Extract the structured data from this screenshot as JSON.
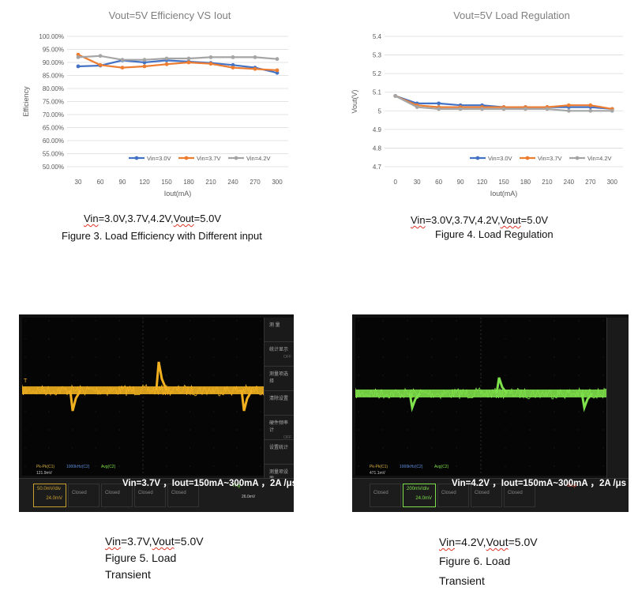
{
  "chart_data": [
    {
      "type": "line",
      "title": "Vout=5V  Efficiency VS Iout",
      "xlabel": "Iout(mA)",
      "ylabel": "Efficiency",
      "categories": [
        "30",
        "60",
        "90",
        "120",
        "150",
        "180",
        "210",
        "240",
        "270",
        "300"
      ],
      "y_ticks": [
        "100.00%",
        "95.00%",
        "90.00%",
        "85.00%",
        "80.00%",
        "75.00%",
        "70.00%",
        "65.00%",
        "60.00%",
        "55.00%",
        "50.00%"
      ],
      "ylim": [
        50,
        100
      ],
      "grid": true,
      "legend": "bottom-right",
      "series": [
        {
          "name": "Vin=3.0V",
          "color": "#4472c4",
          "values": [
            88.5,
            88.8,
            90.8,
            90.0,
            90.8,
            90.3,
            89.8,
            89.0,
            88.0,
            86.0
          ]
        },
        {
          "name": "Vin=3.7V",
          "color": "#ed7d31",
          "values": [
            93.0,
            89.0,
            88.0,
            88.5,
            89.3,
            90.0,
            89.5,
            88.0,
            87.5,
            87.0
          ]
        },
        {
          "name": "Vin=4.2V",
          "color": "#a5a5a5",
          "values": [
            92.0,
            92.5,
            91.0,
            91.0,
            91.5,
            91.5,
            92.0,
            92.0,
            92.0,
            91.3
          ]
        }
      ]
    },
    {
      "type": "line",
      "title": "Vout=5V  Load Regulation",
      "xlabel": "Iout(mA)",
      "ylabel": "Vout(V)",
      "categories": [
        "0",
        "30",
        "60",
        "90",
        "120",
        "150",
        "180",
        "210",
        "240",
        "270",
        "300"
      ],
      "y_ticks": [
        "5.4",
        "5.3",
        "5.2",
        "5.1",
        "5",
        "4.9",
        "4.8",
        "4.7"
      ],
      "ylim": [
        4.7,
        5.4
      ],
      "grid": true,
      "legend": "bottom-right",
      "series": [
        {
          "name": "Vin=3.0V",
          "color": "#4472c4",
          "values": [
            5.08,
            5.04,
            5.04,
            5.03,
            5.03,
            5.02,
            5.02,
            5.02,
            5.02,
            5.02,
            5.01
          ]
        },
        {
          "name": "Vin=3.7V",
          "color": "#ed7d31",
          "values": [
            5.08,
            5.03,
            5.02,
            5.02,
            5.02,
            5.02,
            5.02,
            5.02,
            5.03,
            5.03,
            5.01
          ]
        },
        {
          "name": "Vin=4.2V",
          "color": "#a5a5a5",
          "values": [
            5.08,
            5.02,
            5.01,
            5.01,
            5.01,
            5.01,
            5.01,
            5.01,
            5.0,
            5.0,
            5.0
          ]
        }
      ]
    }
  ],
  "captions": {
    "fig3_cond": "Vin=3.0V,3.7V,4.2V,Vout=5.0V",
    "fig3_cond_a": "Vin",
    "fig3_cond_b": "=3.0V,3.7V,4.2V,",
    "fig3_cond_c": "Vout",
    "fig3_cond_d": "=5.0V",
    "fig3": "Figure 3. Load Efficiency with Different input",
    "fig4_cond_a": "Vin",
    "fig4_cond_b": "=3.0V,3.7V,4.2V,",
    "fig4_cond_c": "Vout",
    "fig4_cond_d": "=5.0V",
    "fig4": "Figure 4. Load Regulation",
    "fig5_cond_a": "Vin",
    "fig5_cond_b": "=3.7V,",
    "fig5_cond_c": "Vout",
    "fig5_cond_d": "=5.0V",
    "fig5_l1": "Figure 5. Load",
    "fig5_l2": "Transient",
    "fig6_cond_a": "Vin",
    "fig6_cond_b": "=4.2V,",
    "fig6_cond_c": "Vout",
    "fig6_cond_d": "=5.0V",
    "fig6_l1": "Figure 6. Load",
    "fig6_l2": "Transient"
  },
  "scope5": {
    "overlay": "Vin=3.7V ，Iout=150mA~300mA ，2A /μs",
    "trace_color": "#f0b020",
    "menu": [
      "测 量",
      "统计显示",
      "测量项选择",
      "清除设置",
      "硬件频率计",
      "设置统计",
      "测量项设置"
    ],
    "menu_sub": [
      "",
      "OFF",
      "",
      "",
      "OFF",
      "",
      ""
    ],
    "channels": [
      "Closed",
      "Closed",
      "Closed",
      "Closed"
    ],
    "marker_t": "T",
    "marker_1": "1",
    "meas": [
      "Pk-Pk(C1)",
      "1000kHz(C2)",
      "Avg(C2)"
    ],
    "meas_val": "121.9mV",
    "trig": "Trig",
    "trig_val": "26.0mV"
  },
  "scope6": {
    "overlay": "Vin=4.2V ，Iout=150mA~300mA ，2A /μs",
    "trace_color": "#7ee04a",
    "channels": [
      "Closed",
      "Closed",
      "Closed",
      "Closed"
    ],
    "marker_2": "2",
    "meas": [
      "Pk-Pk(C1)",
      "1000kHz(C2)",
      "Avg(C2)"
    ],
    "meas_val": "471.1mV",
    "stop": "Stop"
  }
}
